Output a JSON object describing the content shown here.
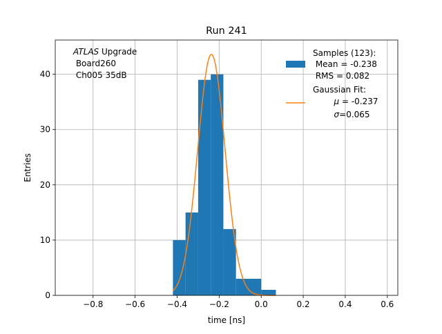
{
  "chart_data": {
    "type": "bar",
    "title": "Run 241",
    "xlabel": "time [ns]",
    "ylabel": "Entries",
    "xlim": [
      -0.98,
      0.65
    ],
    "ylim": [
      0,
      46.2
    ],
    "grid": true,
    "x_ticks": [
      -0.8,
      -0.6,
      -0.4,
      -0.2,
      0.0,
      0.2,
      0.4,
      0.6
    ],
    "x_tick_labels": [
      "−0.8",
      "−0.6",
      "−0.4",
      "−0.2",
      "0.0",
      "0.2",
      "0.4",
      "0.6"
    ],
    "y_ticks": [
      0,
      10,
      20,
      30,
      40
    ],
    "y_tick_labels": [
      "0",
      "10",
      "20",
      "30",
      "40"
    ],
    "annotation": {
      "italic": "ATLAS",
      "line1_rest": " Upgrade",
      "line2": " Board260",
      "line3": " Ch005 35dB"
    },
    "histogram": {
      "name": "Samples (123):",
      "color": "#1f77b4",
      "bins": [
        {
          "x0": -0.42,
          "x1": -0.36,
          "count": 10
        },
        {
          "x0": -0.36,
          "x1": -0.3,
          "count": 15
        },
        {
          "x0": -0.3,
          "x1": -0.24,
          "count": 39
        },
        {
          "x0": -0.24,
          "x1": -0.18,
          "count": 40
        },
        {
          "x0": -0.18,
          "x1": -0.12,
          "count": 12
        },
        {
          "x0": -0.12,
          "x1": -0.06,
          "count": 3
        },
        {
          "x0": -0.06,
          "x1": 0.0,
          "count": 3
        },
        {
          "x0": 0.0,
          "x1": 0.07,
          "count": 1
        }
      ]
    },
    "fit": {
      "name": "Gaussian Fit:",
      "color": "#ff7f0e",
      "mu": -0.237,
      "sigma": 0.065,
      "amplitude": 43.6,
      "x_range": [
        -0.42,
        0.07
      ]
    },
    "legend": {
      "position": "top-right",
      "hist_lines": [
        "Samples (123):",
        " Mean = -0.238",
        " RMS = 0.082"
      ],
      "fit_title": "Gaussian Fit:",
      "fit_mu_sym": "μ",
      "fit_mu_val": " = -0.237",
      "fit_sigma_sym": "σ",
      "fit_sigma_val": "=0.065"
    }
  }
}
